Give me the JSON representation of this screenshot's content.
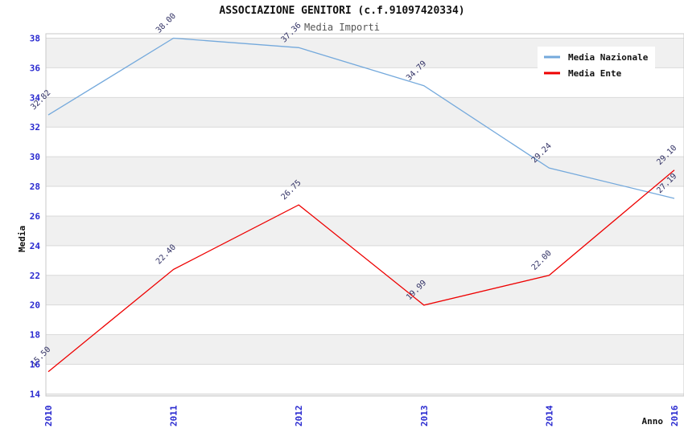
{
  "header": {
    "title": "ASSOCIAZIONE GENITORI (c.f.91097420334)",
    "subtitle": "Media Importi"
  },
  "chart_data": {
    "type": "line",
    "title": "ASSOCIAZIONE GENITORI (c.f.91097420334)",
    "subtitle": "Media Importi",
    "xlabel": "Anno",
    "ylabel": "Media",
    "categories": [
      "2010",
      "2011",
      "2012",
      "2013",
      "2014",
      "2016"
    ],
    "series": [
      {
        "name": "Media Nazionale",
        "color": "#74a9dc",
        "values": [
          32.82,
          38.0,
          37.36,
          34.79,
          29.24,
          27.19
        ],
        "point_labels": [
          "32.82",
          "38.00",
          "37.36",
          "34.79",
          "29.24",
          "27.19"
        ]
      },
      {
        "name": "Media Ente",
        "color": "#ee0000",
        "values": [
          15.5,
          22.4,
          26.75,
          19.99,
          22.0,
          29.1
        ],
        "point_labels": [
          "15.50",
          "22.40",
          "26.75",
          "19.99",
          "22.00",
          "29.10"
        ]
      }
    ],
    "ylim": [
      14,
      38
    ],
    "ytick_step": 2,
    "yticks": [
      14,
      16,
      18,
      20,
      22,
      24,
      26,
      28,
      30,
      32,
      34,
      36,
      38
    ],
    "legend": {
      "position": "top-right",
      "items": [
        "Media Nazionale",
        "Media Ente"
      ]
    },
    "grid": true,
    "background_bands": true
  },
  "colors": {
    "tick_label": "#2a2ad0",
    "value_label": "#333366",
    "band": "#f0f0f0",
    "grid": "#d9d9d9",
    "border": "#c9c9c9",
    "legend_bg": "#ffffff",
    "nazionale": "#74a9dc",
    "ente": "#ee0000"
  }
}
